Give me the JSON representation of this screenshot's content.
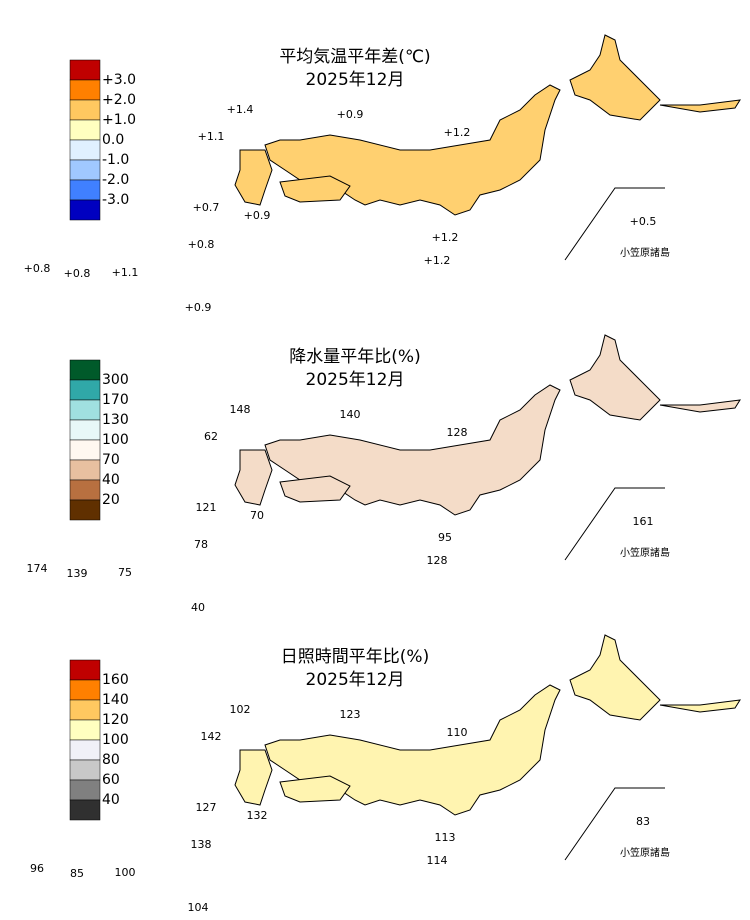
{
  "panels": [
    {
      "title": "平均気温平年差(℃)",
      "subtitle": "2025年12月",
      "legend": [
        "+3.0",
        "+2.0",
        "+1.0",
        "0.0",
        "-1.0",
        "-2.0",
        "-3.0"
      ],
      "legend_colors": [
        "#c00000",
        "#ff8000",
        "#ffc860",
        "#ffffc0",
        "#e0f0ff",
        "#a0c8ff",
        "#4080ff",
        "#0000c0"
      ],
      "map_color": "#ffd070",
      "stations": [
        "+1.4",
        "+0.9",
        "+1.1",
        "+1.2",
        "+0.7",
        "+0.9",
        "+1.2",
        "+1.2",
        "+0.5",
        "+0.8",
        "+0.8",
        "+1.1",
        "+0.8",
        "+0.9"
      ],
      "islands_label": "小笠原諸島"
    },
    {
      "title": "降水量平年比(%)",
      "subtitle": "2025年12月",
      "legend": [
        "300",
        "170",
        "130",
        "100",
        "70",
        "40",
        "20"
      ],
      "legend_colors": [
        "#005a2a",
        "#30a8a8",
        "#a0e0e0",
        "#e8f8f8",
        "#fff8f0",
        "#e8c0a0",
        "#b87040",
        "#603000"
      ],
      "map_color": "#f4dcc8",
      "stations": [
        "148",
        "140",
        "62",
        "128",
        "121",
        "70",
        "95",
        "128",
        "161",
        "174",
        "139",
        "75",
        "78",
        "40"
      ],
      "islands_label": "小笠原諸島"
    },
    {
      "title": "日照時間平年比(%)",
      "subtitle": "2025年12月",
      "legend": [
        "160",
        "140",
        "120",
        "100",
        "80",
        "60",
        "40"
      ],
      "legend_colors": [
        "#c00000",
        "#ff8000",
        "#ffc860",
        "#ffffc0",
        "#f0f0f8",
        "#c8c8c8",
        "#808080",
        "#303030"
      ],
      "map_color": "#fff4b0",
      "stations": [
        "102",
        "123",
        "142",
        "110",
        "127",
        "132",
        "113",
        "114",
        "83",
        "96",
        "85",
        "100",
        "138",
        "104"
      ],
      "islands_label": "小笠原諸島"
    }
  ]
}
